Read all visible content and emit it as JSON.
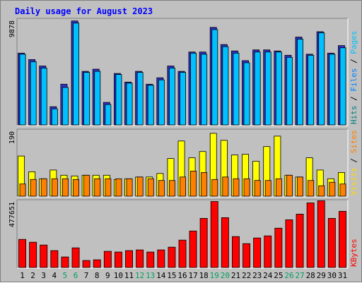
{
  "chart_data": {
    "type": "bar",
    "title": "Daily usage for August 2023",
    "categories": [
      "1",
      "2",
      "3",
      "4",
      "5",
      "6",
      "7",
      "8",
      "9",
      "10",
      "11",
      "12",
      "13",
      "14",
      "15",
      "16",
      "17",
      "18",
      "19",
      "20",
      "21",
      "22",
      "23",
      "24",
      "25",
      "26",
      "27",
      "28",
      "29",
      "30",
      "31"
    ],
    "weekend_days": [
      "5",
      "6",
      "12",
      "13",
      "19",
      "20",
      "26",
      "27"
    ],
    "panels": [
      {
        "id": "hits",
        "ymax_label": "9878",
        "ylim": [
          0,
          9878
        ],
        "side_labels": [
          {
            "text": "Hits",
            "color": "#008080"
          },
          {
            "text": " / ",
            "color": "#000000"
          },
          {
            "text": "Files",
            "color": "#0080ff"
          },
          {
            "text": " / ",
            "color": "#000000"
          },
          {
            "text": "Pages",
            "color": "#00c0ff"
          }
        ],
        "series": [
          {
            "name": "Hits",
            "color": "#3030cc",
            "values": [
              6700,
              6100,
              5500,
              1700,
              3800,
              9700,
              5000,
              5200,
              2100,
              4800,
              4000,
              5000,
              3800,
              4400,
              5500,
              5000,
              6800,
              6800,
              9100,
              7500,
              6900,
              6000,
              7000,
              7000,
              6900,
              6500,
              8200,
              6600,
              8700,
              6700,
              7400
            ]
          },
          {
            "name": "Files",
            "color": "#00c0ff",
            "values": [
              6600,
              5900,
              5300,
              1500,
              3500,
              9500,
              4900,
              5000,
              1900,
              4700,
              3900,
              4900,
              3700,
              4200,
              5300,
              4900,
              6700,
              6600,
              8900,
              7300,
              6700,
              5800,
              6800,
              6800,
              6800,
              6300,
              8000,
              6500,
              8600,
              6600,
              7200
            ]
          }
        ]
      },
      {
        "id": "visits",
        "ymax_label": "190",
        "ylim": [
          0,
          190
        ],
        "side_labels": [
          {
            "text": "Visits",
            "color": "#ffd800"
          },
          {
            "text": " / ",
            "color": "#000000"
          },
          {
            "text": "Sites",
            "color": "#ff8000"
          }
        ],
        "series": [
          {
            "name": "Visits",
            "color": "#ffff00",
            "values": [
              115,
              70,
              50,
              75,
              60,
              58,
              60,
              60,
              60,
              48,
              50,
              55,
              55,
              65,
              108,
              158,
              110,
              128,
              180,
              160,
              118,
              120,
              100,
              142,
              172,
              60,
              55,
              110,
              75,
              50,
              68
            ]
          },
          {
            "name": "Sites",
            "color": "#ff8000",
            "values": [
              35,
              48,
              50,
              50,
              50,
              48,
              60,
              50,
              50,
              50,
              50,
              55,
              50,
              45,
              45,
              55,
              72,
              68,
              48,
              55,
              50,
              50,
              45,
              45,
              50,
              60,
              55,
              45,
              30,
              40,
              35
            ]
          }
        ]
      },
      {
        "id": "kbytes",
        "ymax_label": "477651",
        "ylim": [
          0,
          477651
        ],
        "side_labels": [
          {
            "text": "KBytes",
            "color": "#ff0000"
          }
        ],
        "series": [
          {
            "name": "KBytes",
            "color": "#ff0000",
            "values": [
              200000,
              180000,
              160000,
              120000,
              75000,
              140000,
              50000,
              55000,
              115000,
              110000,
              120000,
              125000,
              110000,
              125000,
              145000,
              195000,
              260000,
              350000,
              470000,
              355000,
              220000,
              170000,
              210000,
              225000,
              280000,
              340000,
              380000,
              460000,
              475000,
              350000,
              400000
            ]
          }
        ]
      }
    ]
  },
  "colors": {
    "background": "#c0c0c0",
    "title": "#0000ff",
    "weekend_tick": "#00a060",
    "weekday_tick": "#000000"
  }
}
